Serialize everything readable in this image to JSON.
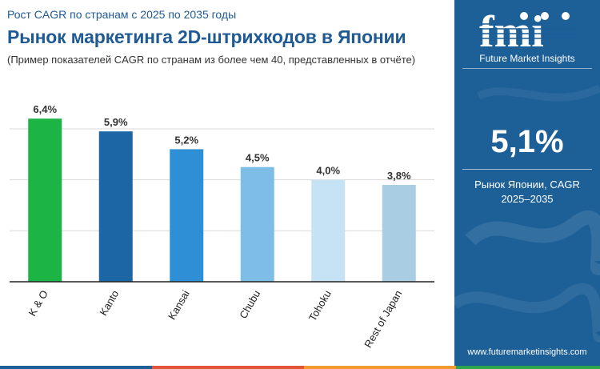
{
  "header": {
    "subtitle": "Рост CAGR по странам с 2025 по 2035 годы",
    "title": "Рынок маркетинга 2D-штрихкодов в Японии",
    "note": "(Пример показателей CAGR по странам из более чем 40, представленных в отчёте)"
  },
  "chart_data": {
    "type": "bar",
    "categories": [
      "K & O",
      "Kanto",
      "Kansai",
      "Chubu",
      "Tohoku",
      "Rest of Japan"
    ],
    "values": [
      6.4,
      5.9,
      5.2,
      4.5,
      4.0,
      3.8
    ],
    "value_labels": [
      "6,4%",
      "5,9%",
      "5,2%",
      "4,5%",
      "4,0%",
      "3,8%"
    ],
    "colors": [
      "#1db446",
      "#1d66a6",
      "#2f8fd6",
      "#7dbde6",
      "#c6e3f5",
      "#a9cde3"
    ],
    "ylim": [
      0,
      7.6
    ],
    "grid": true,
    "title": "",
    "xlabel": "",
    "ylabel": ""
  },
  "sidebar": {
    "brand": "fmi",
    "brand_tagline": "Future Market Insights",
    "value": "5,1%",
    "value_label_line1": "Рынок Японии, CAGR",
    "value_label_line2": "2025–2035",
    "website": "www.futuremarketinsights.com",
    "bg_color": "#1d5f97"
  },
  "footer": {
    "stripe_colors": [
      "#1d5f97",
      "#e2553b",
      "#f29a2e",
      "#2da44e"
    ]
  }
}
